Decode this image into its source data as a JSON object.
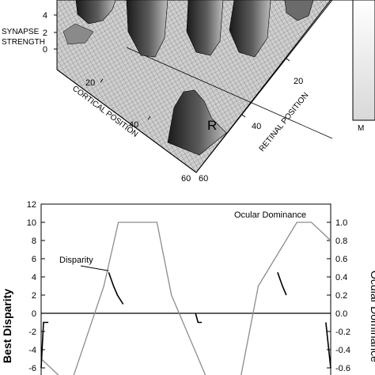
{
  "top_panel": {
    "z_label_line1": "SYNAPSE",
    "z_label_line2": "STRENGTH",
    "z_ticks": [
      "4",
      "2",
      "0"
    ],
    "cortical_axis_label": "CORTICAL POSITION",
    "retinal_axis_label": "RETINAL POSITION",
    "cortical_ticks": [
      "20",
      "40",
      "60"
    ],
    "retinal_ticks": [
      "20",
      "40",
      "60"
    ],
    "peak_label": "R",
    "colorbar_bottom_label": "M"
  },
  "chart_data": {
    "type": "line",
    "ylabel_left": "Best Disparity",
    "ylabel_right": "Ocular Dominance",
    "left_ticks": [
      "12",
      "10",
      "8",
      "6",
      "4",
      "2",
      "0",
      "-2",
      "-4",
      "-6"
    ],
    "right_ticks": [
      "1.0",
      "0.8",
      "0.6",
      "0.4",
      "0.2",
      "0.0",
      "-0.2",
      "-0.4",
      "-0.6"
    ],
    "ylim_left": [
      -6,
      12
    ],
    "ylim_right": [
      -0.6,
      1.2
    ],
    "x_range": [
      0,
      60
    ],
    "series": [
      {
        "name": "Ocular Dominance",
        "axis": "right",
        "x": [
          0,
          6,
          13,
          16,
          24,
          27,
          35,
          41,
          45,
          53,
          56,
          60
        ],
        "y": [
          -0.5,
          -0.8,
          0.3,
          1.0,
          1.0,
          0.2,
          -0.8,
          -0.8,
          0.3,
          1.0,
          1.0,
          0.8
        ]
      },
      {
        "name": "Disparity",
        "axis": "left",
        "segments": [
          {
            "x": [
              0,
              0.5,
              1.5
            ],
            "y": [
              -6,
              -1,
              -1
            ]
          },
          {
            "x": [
              14,
              15,
              15.8,
              17
            ],
            "y": [
              4.5,
              3,
              2,
              1
            ]
          },
          {
            "x": [
              32,
              32.5,
              33.3
            ],
            "y": [
              0,
              -1,
              -1
            ]
          },
          {
            "x": [
              49,
              50,
              50.8
            ],
            "y": [
              4.5,
              3,
              2
            ]
          },
          {
            "x": [
              59,
              60
            ],
            "y": [
              -1,
              -6
            ]
          }
        ]
      }
    ]
  }
}
